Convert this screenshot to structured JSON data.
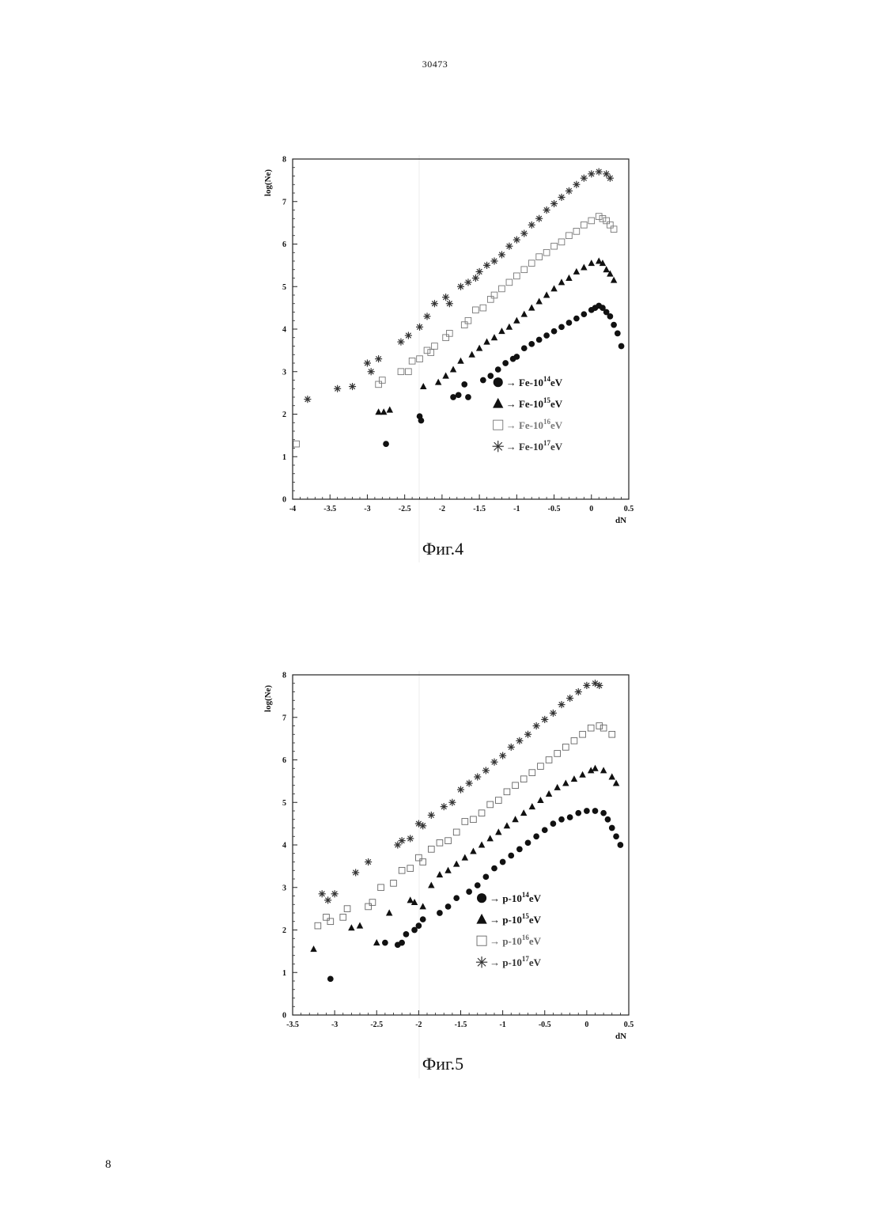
{
  "page": {
    "top_number": "30473",
    "bottom_number": "8"
  },
  "chart_data": [
    {
      "type": "scatter",
      "caption": "Фиг.4",
      "xlabel": "dN",
      "ylabel": "log(Ne)",
      "xlim": [
        -4,
        0.5
      ],
      "ylim": [
        0,
        8
      ],
      "xticks": [
        "-4",
        "-3.5",
        "-3",
        "-2.5",
        "-2",
        "-1.5",
        "-1",
        "-0.5",
        "0",
        "0.5"
      ],
      "xtick_values": [
        -4,
        -3.5,
        -3,
        -2.5,
        -2,
        -1.5,
        -1,
        -0.5,
        0,
        0.5
      ],
      "yticks": [
        "0",
        "1",
        "2",
        "3",
        "4",
        "5",
        "6",
        "7",
        "8"
      ],
      "ytick_values": [
        0,
        1,
        2,
        3,
        4,
        5,
        6,
        7,
        8
      ],
      "legend_position": "lower-right",
      "series": [
        {
          "name": "Fe-10^14eV",
          "legend_prefix": "→ Fe-10",
          "legend_exp": "14",
          "legend_suffix": "eV",
          "marker": "circle",
          "color": "#111111",
          "x": [
            -2.75,
            -2.3,
            -2.28,
            -1.85,
            -1.78,
            -1.7,
            -1.65,
            -1.45,
            -1.35,
            -1.25,
            -1.15,
            -1.05,
            -1.0,
            -0.9,
            -0.8,
            -0.7,
            -0.6,
            -0.5,
            -0.4,
            -0.3,
            -0.2,
            -0.1,
            0.0,
            0.05,
            0.1,
            0.15,
            0.2,
            0.25,
            0.3,
            0.35,
            0.4
          ],
          "y": [
            1.3,
            1.95,
            1.85,
            2.4,
            2.45,
            2.7,
            2.4,
            2.8,
            2.9,
            3.05,
            3.2,
            3.3,
            3.35,
            3.55,
            3.65,
            3.75,
            3.85,
            3.95,
            4.05,
            4.15,
            4.25,
            4.35,
            4.45,
            4.5,
            4.55,
            4.5,
            4.4,
            4.3,
            4.1,
            3.9,
            3.6
          ]
        },
        {
          "name": "Fe-10^15eV",
          "legend_prefix": "→ Fe-10",
          "legend_exp": "15",
          "legend_suffix": "eV",
          "marker": "triangle",
          "color": "#111111",
          "x": [
            -2.85,
            -2.78,
            -2.7,
            -2.25,
            -2.05,
            -1.95,
            -1.85,
            -1.75,
            -1.6,
            -1.5,
            -1.4,
            -1.3,
            -1.2,
            -1.1,
            -1.0,
            -0.9,
            -0.8,
            -0.7,
            -0.6,
            -0.5,
            -0.4,
            -0.3,
            -0.2,
            -0.1,
            0.0,
            0.1,
            0.15,
            0.2,
            0.25,
            0.3
          ],
          "y": [
            2.05,
            2.05,
            2.1,
            2.65,
            2.75,
            2.9,
            3.05,
            3.25,
            3.4,
            3.55,
            3.7,
            3.8,
            3.95,
            4.05,
            4.2,
            4.35,
            4.5,
            4.65,
            4.8,
            4.95,
            5.1,
            5.2,
            5.35,
            5.45,
            5.55,
            5.6,
            5.55,
            5.4,
            5.3,
            5.15
          ]
        },
        {
          "name": "Fe-10^16eV",
          "legend_prefix": "→ Fe-10",
          "legend_exp": "16",
          "legend_suffix": "eV",
          "marker": "square",
          "color": "#777777",
          "x": [
            -3.95,
            -2.85,
            -2.8,
            -2.55,
            -2.45,
            -2.4,
            -2.3,
            -2.2,
            -2.15,
            -2.1,
            -1.95,
            -1.9,
            -1.7,
            -1.65,
            -1.55,
            -1.45,
            -1.35,
            -1.3,
            -1.2,
            -1.1,
            -1.0,
            -0.9,
            -0.8,
            -0.7,
            -0.6,
            -0.5,
            -0.4,
            -0.3,
            -0.2,
            -0.1,
            0.0,
            0.1,
            0.15,
            0.2,
            0.25,
            0.3
          ],
          "y": [
            1.3,
            2.7,
            2.8,
            3.0,
            3.0,
            3.25,
            3.3,
            3.5,
            3.45,
            3.6,
            3.8,
            3.9,
            4.1,
            4.2,
            4.45,
            4.5,
            4.7,
            4.8,
            4.95,
            5.1,
            5.25,
            5.4,
            5.55,
            5.7,
            5.8,
            5.95,
            6.05,
            6.2,
            6.3,
            6.45,
            6.55,
            6.65,
            6.6,
            6.55,
            6.45,
            6.35
          ]
        },
        {
          "name": "Fe-10^17eV",
          "legend_prefix": "→ Fe-10",
          "legend_exp": "17",
          "legend_suffix": "eV",
          "marker": "asterisk",
          "color": "#333333",
          "x": [
            -3.8,
            -3.4,
            -3.2,
            -3.0,
            -2.95,
            -2.85,
            -2.55,
            -2.45,
            -2.3,
            -2.2,
            -2.1,
            -1.95,
            -1.9,
            -1.75,
            -1.65,
            -1.55,
            -1.5,
            -1.4,
            -1.3,
            -1.2,
            -1.1,
            -1.0,
            -0.9,
            -0.8,
            -0.7,
            -0.6,
            -0.5,
            -0.4,
            -0.3,
            -0.2,
            -0.1,
            0.0,
            0.1,
            0.2,
            0.25
          ],
          "y": [
            2.35,
            2.6,
            2.65,
            3.2,
            3.0,
            3.3,
            3.7,
            3.85,
            4.05,
            4.3,
            4.6,
            4.75,
            4.6,
            5.0,
            5.1,
            5.2,
            5.35,
            5.5,
            5.6,
            5.75,
            5.95,
            6.1,
            6.25,
            6.45,
            6.6,
            6.8,
            6.95,
            7.1,
            7.25,
            7.4,
            7.55,
            7.65,
            7.7,
            7.65,
            7.55
          ]
        }
      ]
    },
    {
      "type": "scatter",
      "caption": "Фиг.5",
      "xlabel": "dN",
      "ylabel": "log(Ne)",
      "xlim": [
        -3.5,
        0.5
      ],
      "ylim": [
        0,
        8
      ],
      "xticks": [
        "-3.5",
        "-3",
        "-2.5",
        "-2",
        "-1.5",
        "-1",
        "-0.5",
        "0",
        "0.5"
      ],
      "xtick_values": [
        -3.5,
        -3,
        -2.5,
        -2,
        -1.5,
        -1,
        -0.5,
        0,
        0.5
      ],
      "yticks": [
        "0",
        "1",
        "2",
        "3",
        "4",
        "5",
        "6",
        "7",
        "8"
      ],
      "ytick_values": [
        0,
        1,
        2,
        3,
        4,
        5,
        6,
        7,
        8
      ],
      "legend_position": "lower-right",
      "series": [
        {
          "name": "p-10^14eV",
          "legend_prefix": "→ p-10",
          "legend_exp": "14",
          "legend_suffix": "eV",
          "marker": "circle",
          "color": "#111111",
          "x": [
            -3.05,
            -2.4,
            -2.25,
            -2.2,
            -2.15,
            -2.05,
            -2.0,
            -1.95,
            -1.75,
            -1.65,
            -1.55,
            -1.4,
            -1.3,
            -1.2,
            -1.1,
            -1.0,
            -0.9,
            -0.8,
            -0.7,
            -0.6,
            -0.5,
            -0.4,
            -0.3,
            -0.2,
            -0.1,
            0.0,
            0.1,
            0.2,
            0.25,
            0.3,
            0.35,
            0.4
          ],
          "y": [
            0.85,
            1.7,
            1.65,
            1.7,
            1.9,
            2.0,
            2.1,
            2.25,
            2.4,
            2.55,
            2.75,
            2.9,
            3.05,
            3.25,
            3.45,
            3.6,
            3.75,
            3.9,
            4.05,
            4.2,
            4.35,
            4.5,
            4.6,
            4.65,
            4.75,
            4.8,
            4.8,
            4.75,
            4.6,
            4.4,
            4.2,
            4.0
          ]
        },
        {
          "name": "p-10^15eV",
          "legend_prefix": "→ p-10",
          "legend_exp": "15",
          "legend_suffix": "eV",
          "marker": "triangle",
          "color": "#111111",
          "x": [
            -3.25,
            -2.8,
            -2.7,
            -2.5,
            -2.35,
            -2.1,
            -2.05,
            -1.95,
            -1.85,
            -1.75,
            -1.65,
            -1.55,
            -1.45,
            -1.35,
            -1.25,
            -1.15,
            -1.05,
            -0.95,
            -0.85,
            -0.75,
            -0.65,
            -0.55,
            -0.45,
            -0.35,
            -0.25,
            -0.15,
            -0.05,
            0.05,
            0.1,
            0.2,
            0.3,
            0.35
          ],
          "y": [
            1.55,
            2.05,
            2.1,
            1.7,
            2.4,
            2.7,
            2.65,
            2.55,
            3.05,
            3.3,
            3.4,
            3.55,
            3.7,
            3.85,
            4.0,
            4.15,
            4.3,
            4.45,
            4.6,
            4.75,
            4.9,
            5.05,
            5.2,
            5.35,
            5.45,
            5.55,
            5.65,
            5.75,
            5.8,
            5.75,
            5.6,
            5.45
          ]
        },
        {
          "name": "p-10^16eV",
          "legend_prefix": "→ p-10",
          "legend_exp": "16",
          "legend_suffix": "eV",
          "marker": "square",
          "color": "#666666",
          "x": [
            -3.2,
            -3.1,
            -3.05,
            -2.9,
            -2.85,
            -2.6,
            -2.55,
            -2.45,
            -2.3,
            -2.2,
            -2.1,
            -2.0,
            -1.95,
            -1.85,
            -1.75,
            -1.65,
            -1.55,
            -1.45,
            -1.35,
            -1.25,
            -1.15,
            -1.05,
            -0.95,
            -0.85,
            -0.75,
            -0.65,
            -0.55,
            -0.45,
            -0.35,
            -0.25,
            -0.15,
            -0.05,
            0.05,
            0.15,
            0.2,
            0.3
          ],
          "y": [
            2.1,
            2.3,
            2.2,
            2.3,
            2.5,
            2.55,
            2.65,
            3.0,
            3.1,
            3.4,
            3.45,
            3.7,
            3.6,
            3.9,
            4.05,
            4.1,
            4.3,
            4.55,
            4.6,
            4.75,
            4.95,
            5.05,
            5.25,
            5.4,
            5.55,
            5.7,
            5.85,
            6.0,
            6.15,
            6.3,
            6.45,
            6.6,
            6.75,
            6.8,
            6.75,
            6.6
          ]
        },
        {
          "name": "p-10^17eV",
          "legend_prefix": "→ p-10",
          "legend_exp": "17",
          "legend_suffix": "eV",
          "marker": "asterisk",
          "color": "#333333",
          "x": [
            -3.15,
            -3.08,
            -3.0,
            -2.75,
            -2.6,
            -2.25,
            -2.2,
            -2.1,
            -2.0,
            -1.95,
            -1.85,
            -1.7,
            -1.6,
            -1.5,
            -1.4,
            -1.3,
            -1.2,
            -1.1,
            -1.0,
            -0.9,
            -0.8,
            -0.7,
            -0.6,
            -0.5,
            -0.4,
            -0.3,
            -0.2,
            -0.1,
            0.0,
            0.1,
            0.15
          ],
          "y": [
            2.85,
            2.7,
            2.85,
            3.35,
            3.6,
            4.0,
            4.1,
            4.15,
            4.5,
            4.45,
            4.7,
            4.9,
            5.0,
            5.3,
            5.45,
            5.6,
            5.75,
            5.95,
            6.1,
            6.3,
            6.45,
            6.6,
            6.8,
            6.95,
            7.1,
            7.3,
            7.45,
            7.6,
            7.75,
            7.8,
            7.75
          ]
        }
      ]
    }
  ]
}
